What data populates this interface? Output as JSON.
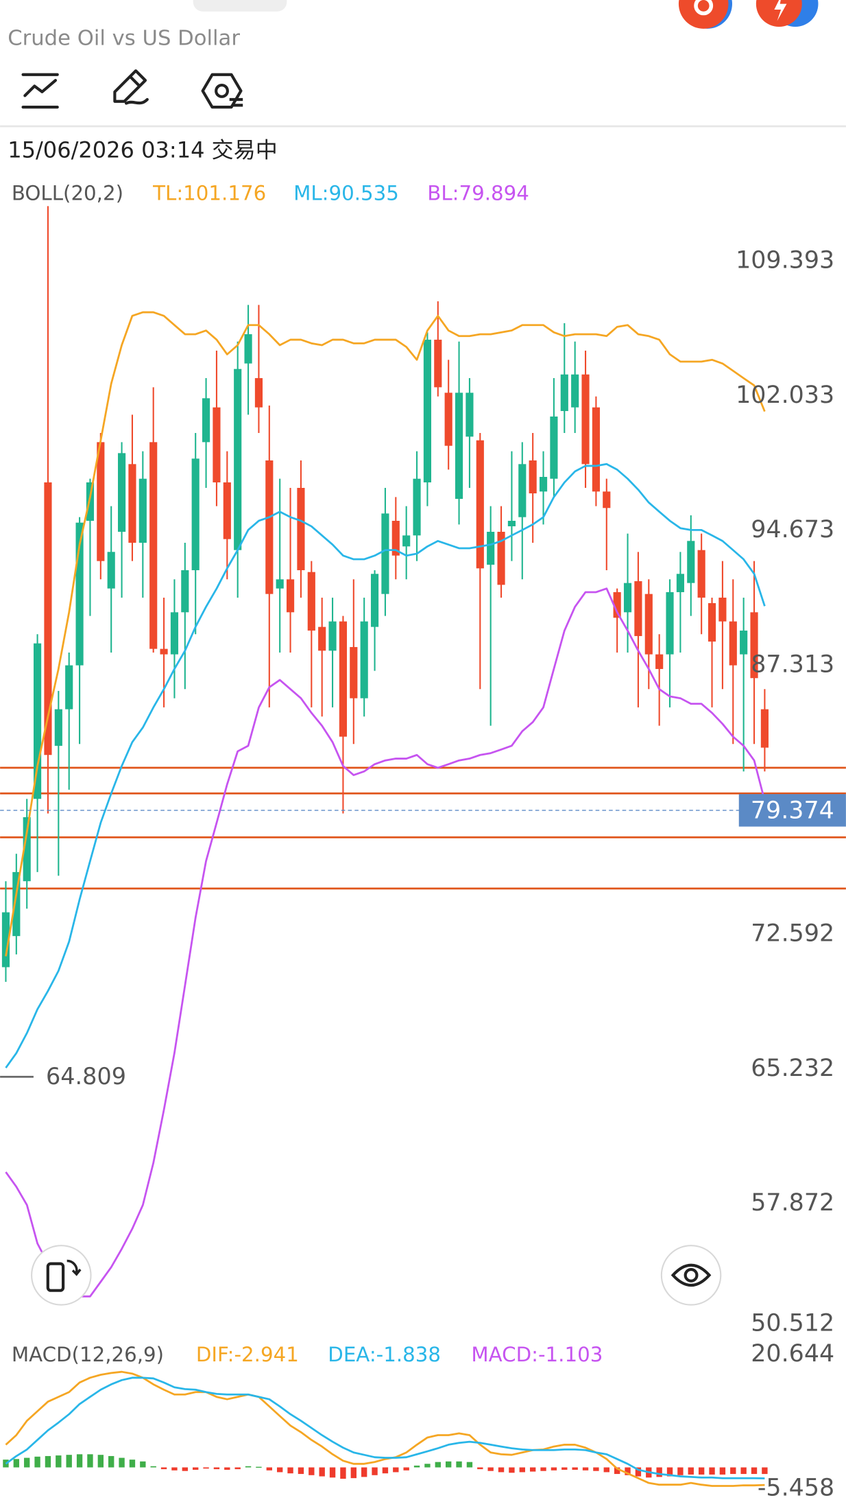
{
  "header": {
    "title": "Crude Oil vs US Dollar"
  },
  "chart": {
    "status": "15/06/2026 03:14 交易中",
    "boll": {
      "label": "BOLL(20,2)",
      "tl": "TL:101.176",
      "ml": "ML:90.535",
      "bl": "BL:79.894",
      "upper": [
        71.4,
        74.8,
        78.2,
        81.8,
        84.5,
        87.1,
        90.2,
        93.9,
        96.5,
        99.6,
        102.7,
        104.8,
        106.4,
        106.6,
        106.6,
        106.4,
        105.9,
        105.4,
        105.4,
        105.6,
        105.1,
        104.3,
        104.8,
        105.9,
        105.9,
        105.4,
        104.8,
        105.1,
        105.1,
        104.9,
        104.8,
        105.1,
        105.1,
        104.9,
        104.9,
        105.1,
        105.1,
        105.1,
        104.7,
        104.0,
        105.6,
        106.4,
        105.6,
        105.3,
        105.3,
        105.4,
        105.4,
        105.5,
        105.6,
        105.9,
        105.9,
        105.9,
        105.5,
        105.3,
        105.4,
        105.4,
        105.4,
        105.3,
        105.8,
        105.9,
        105.4,
        105.3,
        105.1,
        104.3,
        103.9,
        103.9,
        103.9,
        104.0,
        103.8,
        103.4,
        103.0,
        102.6,
        101.176
      ],
      "middle": [
        65.3,
        66.1,
        67.2,
        68.5,
        69.5,
        70.6,
        72.2,
        74.5,
        76.6,
        78.7,
        80.3,
        81.8,
        83.1,
        83.9,
        85.0,
        86.0,
        87.1,
        88.1,
        89.4,
        90.5,
        91.5,
        92.6,
        93.6,
        94.7,
        95.2,
        95.4,
        95.7,
        95.4,
        95.2,
        94.9,
        94.4,
        93.9,
        93.3,
        93.1,
        93.1,
        93.3,
        93.6,
        93.6,
        93.3,
        93.4,
        93.8,
        94.1,
        93.9,
        93.7,
        93.7,
        93.8,
        93.9,
        94.1,
        94.4,
        94.7,
        95.0,
        95.4,
        96.5,
        97.3,
        97.9,
        98.2,
        98.2,
        98.3,
        98.0,
        97.5,
        96.9,
        96.2,
        95.7,
        95.2,
        94.8,
        94.7,
        94.7,
        94.4,
        94.1,
        93.6,
        93.1,
        92.3,
        90.535
      ],
      "lower": [
        59.6,
        58.8,
        57.8,
        55.7,
        54.6,
        53.9,
        53.3,
        52.8,
        52.8,
        53.6,
        54.4,
        55.4,
        56.5,
        57.8,
        60.1,
        63.0,
        66.1,
        69.8,
        73.5,
        76.6,
        78.7,
        80.8,
        82.6,
        82.9,
        85.0,
        86.1,
        86.5,
        86.0,
        85.5,
        84.7,
        84.0,
        83.1,
        81.8,
        81.3,
        81.5,
        81.9,
        82.1,
        82.2,
        82.2,
        82.4,
        81.9,
        81.7,
        81.9,
        82.1,
        82.2,
        82.4,
        82.5,
        82.7,
        82.9,
        83.7,
        84.2,
        85.0,
        87.1,
        89.2,
        90.5,
        91.3,
        91.3,
        91.5,
        90.2,
        89.2,
        88.1,
        87.1,
        86.0,
        85.6,
        85.5,
        85.2,
        85.2,
        84.7,
        84.1,
        83.4,
        82.9,
        82.1,
        79.894
      ]
    },
    "price_ticks": [
      109.393,
      102.033,
      94.673,
      87.313,
      72.592,
      65.232,
      57.872,
      50.512
    ],
    "candles": {
      "open": [
        70.8,
        72.5,
        75.5,
        80,
        97.3,
        82.9,
        84.9,
        87.3,
        95.2,
        99.5,
        91.5,
        94.6,
        98.3,
        94,
        99.5,
        88.2,
        87.9,
        90.2,
        92.5,
        99.5,
        101.4,
        97.3,
        93.6,
        103.8,
        103,
        98.5,
        91.5,
        92,
        97,
        92.4,
        89.4,
        88.1,
        89.7,
        88.3,
        85.5,
        89.4,
        91.2,
        95.2,
        93.8,
        94.4,
        97.3,
        105.1,
        102.2,
        96.4,
        99.8,
        99.6,
        92.8,
        94.6,
        94.9,
        95.4,
        98.5,
        96.8,
        97.5,
        101.2,
        101.4,
        103.2,
        101.4,
        96.8,
        91.3,
        90.2,
        91.9,
        91.2,
        87.9,
        87.9,
        91.3,
        91.8,
        93.6,
        90.7,
        91,
        89.7,
        87.9,
        90.2,
        84.9
      ],
      "high": [
        75.5,
        77,
        80,
        89,
        112.4,
        85.9,
        88,
        95.4,
        97.5,
        100,
        96,
        99.5,
        101,
        99,
        102.5,
        91,
        92,
        94,
        100,
        103,
        104.5,
        99,
        105,
        107,
        107,
        101.5,
        97.5,
        97,
        98.5,
        93,
        91,
        91,
        90,
        92,
        91,
        92.5,
        97,
        96.5,
        96,
        99,
        105.5,
        107.2,
        104,
        105,
        103,
        100,
        96,
        96,
        99,
        99.5,
        100,
        99,
        103,
        106,
        105,
        104.5,
        102,
        97.5,
        91.5,
        94.5,
        93.5,
        92,
        89,
        92,
        93.5,
        95.5,
        94.5,
        91,
        93,
        92,
        91,
        93,
        86
      ],
      "low": [
        70,
        71.5,
        74,
        76,
        79.2,
        75.8,
        80.5,
        83,
        90,
        92,
        88,
        91,
        93,
        91,
        88,
        85,
        85.5,
        86,
        89,
        97,
        96,
        92,
        91,
        101,
        100,
        85,
        88,
        88,
        91,
        85,
        84.5,
        85,
        79.2,
        83,
        84.5,
        87,
        90,
        92,
        92,
        93,
        96,
        102,
        98,
        95,
        97,
        86,
        84,
        91,
        93,
        92,
        94,
        95,
        96.5,
        100,
        100,
        97,
        96,
        92.5,
        88,
        88,
        85,
        86,
        84,
        85,
        88,
        90,
        89,
        85,
        86,
        83,
        81.5,
        83,
        81.5
      ],
      "close": [
        73.8,
        76,
        79,
        88.5,
        82.4,
        84.9,
        87.3,
        95.1,
        97.3,
        93,
        93.5,
        98.9,
        94,
        97.5,
        88.2,
        87.9,
        90.2,
        92.5,
        98.6,
        101.9,
        97.3,
        94.2,
        103.5,
        105.4,
        101.4,
        91.2,
        92,
        90.2,
        92.5,
        89.2,
        88.1,
        89.7,
        83.4,
        85.5,
        89.7,
        92.3,
        95.6,
        93.3,
        94.4,
        97.5,
        105.1,
        102.5,
        99.3,
        102.2,
        102.2,
        92.6,
        94.6,
        91.7,
        95.2,
        98.3,
        96.7,
        97.6,
        100.9,
        103.2,
        103.2,
        98.3,
        96.8,
        95.9,
        89.9,
        91.8,
        88.9,
        87.9,
        87.1,
        91.3,
        92.3,
        94.1,
        91,
        88.6,
        89.7,
        87.3,
        89.2,
        86.6,
        82.8
      ]
    },
    "levels": [
      81.7,
      80.3,
      77.9,
      75.1
    ],
    "current_price": 79.374,
    "min_marker": 64.809
  },
  "macd": {
    "label": "MACD(12,26,9)",
    "dif_label": "DIF:-2.941",
    "dea_label": "DEA:-1.838",
    "macd_label": "MACD:-1.103",
    "top": 20.644,
    "bottom": -5.458,
    "dif": [
      3.8,
      5.4,
      7.8,
      9.4,
      11.0,
      11.8,
      12.6,
      14.2,
      15.0,
      15.5,
      15.8,
      16.0,
      15.7,
      15.0,
      13.9,
      13.0,
      12.2,
      12.2,
      12.6,
      12.6,
      11.8,
      11.4,
      11.8,
      12.2,
      11.8,
      10.2,
      8.6,
      7.0,
      5.9,
      4.6,
      3.5,
      2.2,
      1.1,
      0.6,
      0.6,
      0.9,
      1.4,
      1.7,
      2.5,
      3.8,
      5.0,
      5.4,
      5.4,
      5.7,
      5.4,
      3.8,
      2.5,
      2.2,
      2.1,
      2.5,
      2.9,
      3.0,
      3.5,
      3.8,
      3.8,
      3.3,
      2.5,
      1.4,
      -0.2,
      -1.0,
      -1.8,
      -2.6,
      -2.9,
      -2.9,
      -2.9,
      -2.6,
      -2.9,
      -3.1,
      -3.1,
      -3.1,
      -3.0,
      -3.0,
      -2.941
    ],
    "dea": [
      0.6,
      1.9,
      3.0,
      4.6,
      6.2,
      7.5,
      8.9,
      10.6,
      11.8,
      13.0,
      13.9,
      14.6,
      15.0,
      15.0,
      14.9,
      14.2,
      13.4,
      13.1,
      13.0,
      12.6,
      12.3,
      12.2,
      12.2,
      12.2,
      11.8,
      11.4,
      10.2,
      8.9,
      7.8,
      6.6,
      5.4,
      4.3,
      3.3,
      2.5,
      2.1,
      1.7,
      1.6,
      1.6,
      1.7,
      2.2,
      2.7,
      3.2,
      3.8,
      4.1,
      4.3,
      4.1,
      3.8,
      3.5,
      3.2,
      3.0,
      2.9,
      2.9,
      2.9,
      3.0,
      3.0,
      2.9,
      2.5,
      2.2,
      1.4,
      0.6,
      -0.4,
      -0.8,
      -1.1,
      -1.3,
      -1.5,
      -1.6,
      -1.7,
      -1.7,
      -1.8,
      -1.8,
      -1.8,
      -1.8,
      -1.838
    ],
    "hist": [
      1.3,
      1.4,
      1.6,
      1.8,
      1.9,
      2.0,
      2.1,
      2.2,
      2.2,
      2.1,
      1.9,
      1.6,
      1.3,
      1.0,
      0.2,
      -0.3,
      -0.5,
      -0.6,
      -0.4,
      -0.2,
      -0.3,
      -0.4,
      -0.3,
      0.2,
      0.1,
      -0.5,
      -0.8,
      -1.0,
      -1.1,
      -1.3,
      -1.5,
      -1.7,
      -1.9,
      -1.8,
      -1.6,
      -1.3,
      -1.0,
      -0.8,
      -0.5,
      0.3,
      0.6,
      0.9,
      1.0,
      1.0,
      0.9,
      -0.3,
      -0.6,
      -0.8,
      -0.9,
      -0.8,
      -0.7,
      -0.6,
      -0.5,
      -0.4,
      -0.4,
      -0.5,
      -0.6,
      -0.8,
      -1.1,
      -1.3,
      -1.5,
      -1.7,
      -1.6,
      -1.5,
      -1.3,
      -1.2,
      -1.2,
      -1.2,
      -1.2,
      -1.1,
      -1.1,
      -1.1,
      -1.103
    ]
  }
}
